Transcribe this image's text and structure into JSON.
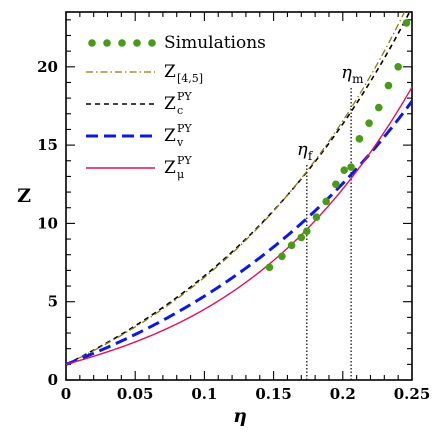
{
  "chart_data": {
    "type": "line",
    "xlabel": "η",
    "ylabel": "Z",
    "xlim": [
      0,
      0.25
    ],
    "ylim": [
      0,
      23.5
    ],
    "x_ticks": [
      0,
      0.05,
      0.1,
      0.15,
      0.2,
      0.25
    ],
    "x_tick_labels": [
      "0",
      "0.05",
      "0.1",
      "0.15",
      "0.2",
      "0.25"
    ],
    "y_ticks": [
      0,
      5,
      10,
      15,
      20
    ],
    "y_tick_labels": [
      "0",
      "5",
      "10",
      "15",
      "20"
    ],
    "x_minor_step": 0.01,
    "y_minor_step": 1,
    "grid": false,
    "legend_position": "top-left",
    "legend": [
      {
        "id": "sim",
        "label": "Simulations",
        "sub": "",
        "sup": "",
        "style": "dots",
        "color": "#4a9a1a"
      },
      {
        "id": "z45",
        "label": "Z",
        "sub": "[4,5]",
        "sup": "",
        "style": "dashdot",
        "color": "#8b7d10"
      },
      {
        "id": "zc",
        "label": "Z",
        "sub": "c",
        "sup": "PY",
        "style": "dashed",
        "color": "#000000"
      },
      {
        "id": "zv",
        "label": "Z",
        "sub": "v",
        "sup": "PY",
        "style": "longdash",
        "color": "#0a1ae6"
      },
      {
        "id": "zmu",
        "label": "Z",
        "sub": "μ",
        "sup": "PY",
        "style": "solid",
        "color": "#e0105a"
      }
    ],
    "annotations": [
      {
        "id": "eta-f",
        "label": "η",
        "sub": "f",
        "x": 0.174
      },
      {
        "id": "eta-m",
        "label": "η",
        "sub": "m",
        "x": 0.206
      }
    ],
    "series": [
      {
        "id": "sim",
        "name": "Simulations",
        "marker": "circle",
        "x": [
          0.147,
          0.156,
          0.163,
          0.17,
          0.174,
          0.181,
          0.188,
          0.195,
          0.201,
          0.206,
          0.212,
          0.219,
          0.226,
          0.233,
          0.24,
          0.246
        ],
        "y": [
          7.2,
          7.9,
          8.6,
          9.1,
          9.5,
          10.4,
          11.4,
          12.5,
          13.4,
          13.6,
          15.4,
          16.4,
          17.4,
          18.8,
          20.0,
          22.8
        ]
      },
      {
        "id": "z45",
        "name": "Z[4,5]",
        "x": [],
        "y": []
      },
      {
        "id": "zc",
        "name": "Zc PY",
        "x": [],
        "y": []
      },
      {
        "id": "zv",
        "name": "Zv PY",
        "x": [],
        "y": []
      },
      {
        "id": "zmu",
        "name": "Zμ PY",
        "x": [],
        "y": []
      }
    ]
  }
}
